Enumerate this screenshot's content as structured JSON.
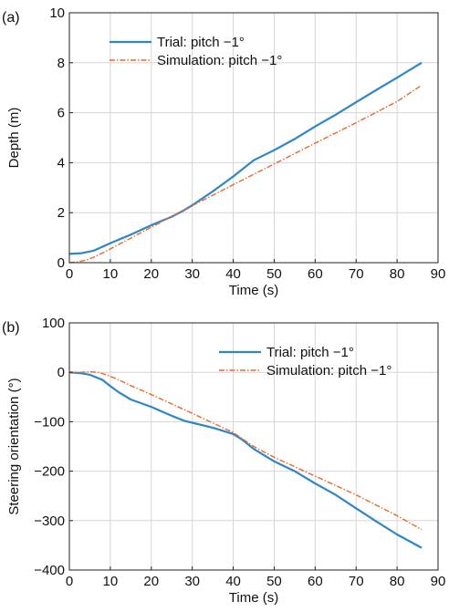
{
  "chart_data": [
    {
      "type": "line",
      "panel_label": "(a)",
      "xlabel": "Time (s)",
      "ylabel": "Depth (m)",
      "xlim": [
        0,
        90
      ],
      "ylim": [
        0,
        10
      ],
      "xticks": [
        0,
        10,
        20,
        30,
        40,
        50,
        60,
        70,
        80,
        90
      ],
      "yticks": [
        0,
        2,
        4,
        6,
        8,
        10
      ],
      "grid": true,
      "legend": "top-left",
      "series": [
        {
          "name": "Trial: pitch −1°",
          "color": "#2e86c8",
          "style": "solid",
          "x": [
            0,
            3,
            6,
            10,
            15,
            20,
            25,
            28,
            30,
            35,
            40,
            45,
            50,
            55,
            60,
            65,
            70,
            75,
            80,
            86
          ],
          "y": [
            0.35,
            0.38,
            0.48,
            0.78,
            1.12,
            1.5,
            1.84,
            2.1,
            2.3,
            2.85,
            3.45,
            4.1,
            4.5,
            4.95,
            5.45,
            5.92,
            6.42,
            6.92,
            7.4,
            8.0
          ]
        },
        {
          "name": "Simulation: pitch −1°",
          "color": "#e8692a",
          "style": "dashdot",
          "x": [
            0,
            2,
            4,
            6,
            8,
            10,
            15,
            20,
            25,
            30,
            40,
            50,
            60,
            70,
            80,
            86
          ],
          "y": [
            0.0,
            0.03,
            0.1,
            0.22,
            0.38,
            0.55,
            0.98,
            1.42,
            1.85,
            2.28,
            3.12,
            3.95,
            4.78,
            5.6,
            6.45,
            7.1
          ]
        }
      ]
    },
    {
      "type": "line",
      "panel_label": "(b)",
      "xlabel": "Time (s)",
      "ylabel": "Steering orientation (°)",
      "xlim": [
        0,
        90
      ],
      "ylim": [
        -400,
        100
      ],
      "xticks": [
        0,
        10,
        20,
        30,
        40,
        50,
        60,
        70,
        80,
        90
      ],
      "yticks": [
        100,
        0,
        -100,
        -200,
        -300,
        -400
      ],
      "grid": true,
      "legend": "top-right",
      "series": [
        {
          "name": "Trial: pitch −1°",
          "color": "#2e86c8",
          "style": "solid",
          "x": [
            0,
            3,
            5,
            8,
            10,
            12,
            15,
            20,
            25,
            28,
            30,
            35,
            40,
            42,
            45,
            50,
            55,
            60,
            65,
            70,
            75,
            80,
            86
          ],
          "y": [
            0,
            -2,
            -5,
            -15,
            -28,
            -40,
            -55,
            -70,
            -88,
            -98,
            -102,
            -112,
            -125,
            -135,
            -155,
            -180,
            -200,
            -225,
            -248,
            -275,
            -302,
            -328,
            -355
          ]
        },
        {
          "name": "Simulation: pitch −1°",
          "color": "#e8692a",
          "style": "dashdot",
          "x": [
            0,
            3,
            5,
            7,
            9,
            12,
            15,
            20,
            30,
            40,
            45,
            50,
            60,
            70,
            80,
            86
          ],
          "y": [
            0,
            0,
            1,
            0,
            -5,
            -15,
            -27,
            -45,
            -83,
            -122,
            -150,
            -172,
            -210,
            -248,
            -290,
            -318
          ]
        }
      ]
    }
  ]
}
